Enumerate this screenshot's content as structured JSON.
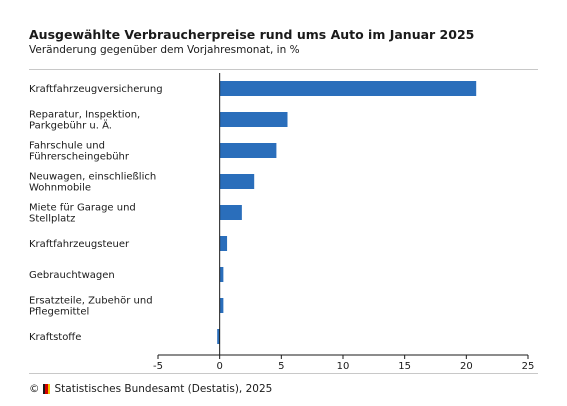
{
  "header": {
    "title": "Ausgewählte Verbraucherpreise rund ums Auto im Januar 2025",
    "subtitle": "Veränderung gegenüber dem Vorjahresmonat, in %"
  },
  "footer": {
    "copyright": "©",
    "source": "Statistisches Bundesamt (Destatis), 2025"
  },
  "colors": {
    "bar": "#2a6ebb",
    "axis": "#1a1a1a",
    "grid": "#c8c8c8"
  },
  "chart_data": {
    "type": "bar",
    "orientation": "horizontal",
    "title": "Ausgewählte Verbraucherpreise rund ums Auto im Januar 2025",
    "subtitle": "Veränderung gegenüber dem Vorjahresmonat, in %",
    "categories": [
      [
        "Kraftfahrzeugversicherung"
      ],
      [
        "Reparatur, Inspektion,",
        "Parkgebühr u. Ä."
      ],
      [
        "Fahrschule und",
        "Führerscheingebühr"
      ],
      [
        "Neuwagen, einschließlich",
        "Wohnmobile"
      ],
      [
        "Miete für Garage und",
        "Stellplatz"
      ],
      [
        "Kraftfahrzeugsteuer"
      ],
      [
        "Gebrauchtwagen"
      ],
      [
        "Ersatzteile, Zubehör und",
        "Pflegemittel"
      ],
      [
        "Kraftstoffe"
      ]
    ],
    "values": [
      20.8,
      5.5,
      4.6,
      2.8,
      1.8,
      0.6,
      0.3,
      0.3,
      -0.2
    ],
    "xlim": [
      -5,
      25
    ],
    "xticks": [
      -5,
      0,
      5,
      10,
      15,
      20,
      25
    ],
    "grid": false,
    "xlabel": "",
    "ylabel": ""
  }
}
